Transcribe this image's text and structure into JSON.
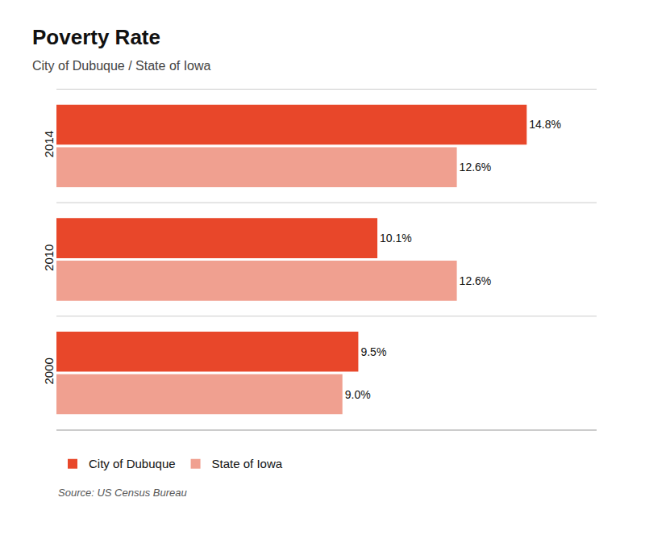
{
  "chart_data": {
    "type": "bar",
    "orientation": "horizontal",
    "title": "Poverty Rate",
    "subtitle": "City of Dubuque / State of Iowa",
    "categories": [
      "2000",
      "2010",
      "2014"
    ],
    "series": [
      {
        "name": "City of Dubuque",
        "color": "#E8472A",
        "values": [
          9.5,
          10.1,
          14.8
        ],
        "value_labels": [
          "9.5%",
          "10.1%",
          "14.8%"
        ]
      },
      {
        "name": "State of Iowa",
        "color": "#F0A090",
        "values": [
          9.0,
          12.6,
          12.6
        ],
        "value_labels": [
          "9.0%",
          "12.6%",
          "12.6%"
        ]
      }
    ],
    "xlim": [
      0,
      17
    ],
    "tick_labels": "y",
    "data_labels": true,
    "legend": "lower left",
    "annotations": [
      "Source: US Census Bureau"
    ]
  }
}
